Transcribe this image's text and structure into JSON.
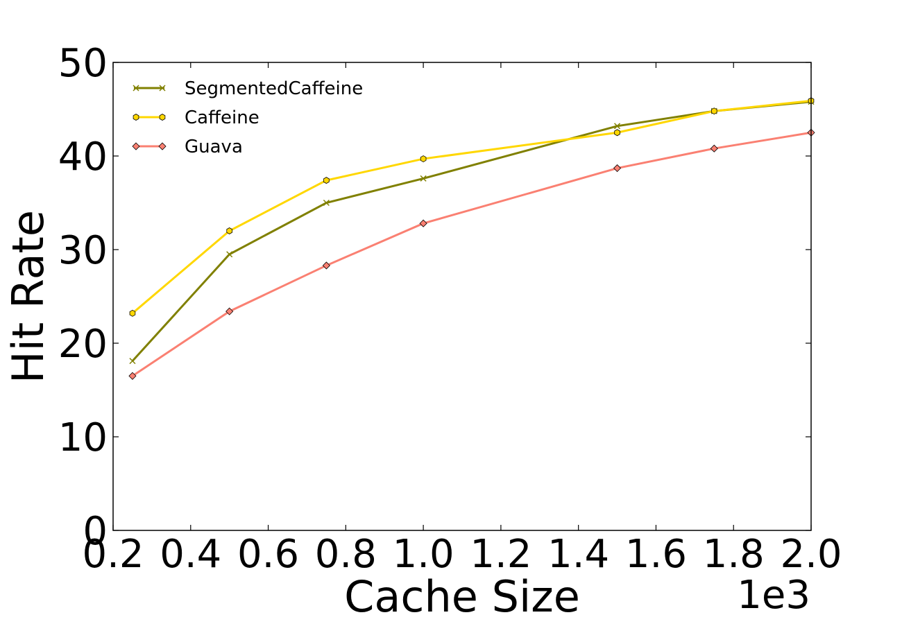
{
  "chart_data": {
    "type": "line",
    "xlabel": "Cache Size",
    "ylabel": "Hit Rate",
    "x_offset_label": "1e3",
    "xlim": [
      0.2,
      2.0
    ],
    "ylim": [
      0,
      50
    ],
    "x_ticks": [
      "0.2",
      "0.4",
      "0.6",
      "0.8",
      "1.0",
      "1.2",
      "1.4",
      "1.6",
      "1.8",
      "2.0"
    ],
    "y_ticks": [
      "0",
      "10",
      "20",
      "30",
      "40",
      "50"
    ],
    "x": [
      0.25,
      0.5,
      0.75,
      1.0,
      1.5,
      1.75,
      2.0
    ],
    "grid": false,
    "legend_position": "top-left",
    "series": [
      {
        "name": "SegmentedCaffeine",
        "color": "#808000",
        "marker": "x",
        "values": [
          18.1,
          29.5,
          35.0,
          37.6,
          43.2,
          44.8,
          45.8
        ]
      },
      {
        "name": "Caffeine",
        "color": "#FFD700",
        "marker": "hexagon",
        "values": [
          23.2,
          32.0,
          37.4,
          39.7,
          42.5,
          44.8,
          45.9
        ]
      },
      {
        "name": "Guava",
        "color": "#FA8072",
        "marker": "diamond",
        "values": [
          16.5,
          23.4,
          28.3,
          32.8,
          38.7,
          40.8,
          42.5
        ]
      }
    ]
  }
}
